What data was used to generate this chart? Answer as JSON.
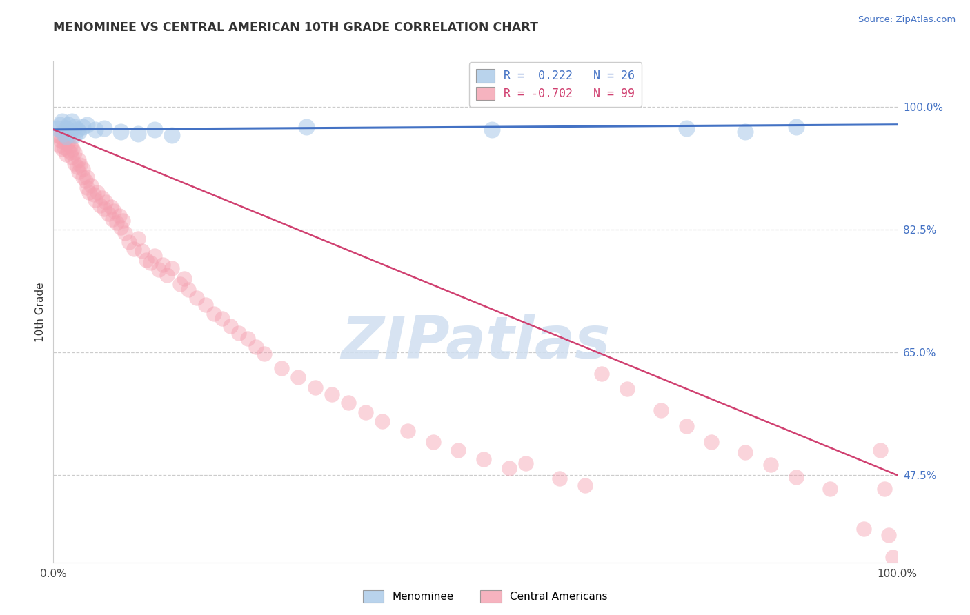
{
  "title": "MENOMINEE VS CENTRAL AMERICAN 10TH GRADE CORRELATION CHART",
  "source": "Source: ZipAtlas.com",
  "ylabel": "10th Grade",
  "yticks": [
    0.475,
    0.65,
    0.825,
    1.0
  ],
  "ytick_labels": [
    "47.5%",
    "65.0%",
    "82.5%",
    "100.0%"
  ],
  "xlim": [
    0.0,
    1.0
  ],
  "ylim": [
    0.35,
    1.065
  ],
  "legend_blue_label": "R =  0.222   N = 26",
  "legend_pink_label": "R = -0.702   N = 99",
  "blue_color": "#a8c8e8",
  "pink_color": "#f4a0b0",
  "blue_line_color": "#4472c4",
  "pink_line_color": "#d04070",
  "watermark": "ZIPatlas",
  "watermark_color": "#d0dff0",
  "legend_label_menominee": "Menominee",
  "legend_label_central": "Central Americans",
  "blue_R": 0.222,
  "blue_N": 26,
  "pink_R": -0.702,
  "pink_N": 99,
  "blue_line_start_y": 0.968,
  "blue_line_end_y": 0.975,
  "pink_line_start_y": 0.968,
  "pink_line_end_y": 0.475,
  "blue_x": [
    0.005,
    0.008,
    0.01,
    0.012,
    0.015,
    0.015,
    0.018,
    0.02,
    0.022,
    0.025,
    0.025,
    0.028,
    0.03,
    0.035,
    0.04,
    0.05,
    0.06,
    0.08,
    0.1,
    0.12,
    0.14,
    0.3,
    0.52,
    0.75,
    0.82,
    0.88
  ],
  "blue_y": [
    0.97,
    0.975,
    0.98,
    0.962,
    0.97,
    0.958,
    0.975,
    0.965,
    0.98,
    0.972,
    0.96,
    0.968,
    0.965,
    0.972,
    0.975,
    0.968,
    0.97,
    0.965,
    0.962,
    0.968,
    0.96,
    0.972,
    0.968,
    0.97,
    0.965,
    0.972
  ],
  "pink_x": [
    0.005,
    0.007,
    0.008,
    0.009,
    0.01,
    0.01,
    0.012,
    0.013,
    0.014,
    0.015,
    0.015,
    0.016,
    0.018,
    0.018,
    0.02,
    0.02,
    0.022,
    0.023,
    0.025,
    0.025,
    0.028,
    0.03,
    0.03,
    0.032,
    0.035,
    0.035,
    0.038,
    0.04,
    0.04,
    0.042,
    0.045,
    0.048,
    0.05,
    0.052,
    0.055,
    0.058,
    0.06,
    0.062,
    0.065,
    0.068,
    0.07,
    0.072,
    0.075,
    0.078,
    0.08,
    0.082,
    0.085,
    0.09,
    0.095,
    0.1,
    0.105,
    0.11,
    0.115,
    0.12,
    0.125,
    0.13,
    0.135,
    0.14,
    0.15,
    0.155,
    0.16,
    0.17,
    0.18,
    0.19,
    0.2,
    0.21,
    0.22,
    0.23,
    0.24,
    0.25,
    0.27,
    0.29,
    0.31,
    0.33,
    0.35,
    0.37,
    0.39,
    0.42,
    0.45,
    0.48,
    0.51,
    0.54,
    0.56,
    0.6,
    0.63,
    0.65,
    0.68,
    0.72,
    0.75,
    0.78,
    0.82,
    0.85,
    0.88,
    0.92,
    0.96,
    0.98,
    0.985,
    0.99,
    0.995
  ],
  "pink_y": [
    0.96,
    0.945,
    0.958,
    0.952,
    0.94,
    0.965,
    0.95,
    0.942,
    0.96,
    0.932,
    0.955,
    0.948,
    0.938,
    0.95,
    0.935,
    0.945,
    0.928,
    0.94,
    0.92,
    0.935,
    0.915,
    0.908,
    0.925,
    0.918,
    0.9,
    0.912,
    0.895,
    0.885,
    0.9,
    0.878,
    0.888,
    0.875,
    0.868,
    0.878,
    0.86,
    0.87,
    0.855,
    0.865,
    0.848,
    0.858,
    0.84,
    0.852,
    0.835,
    0.845,
    0.828,
    0.838,
    0.82,
    0.808,
    0.798,
    0.812,
    0.795,
    0.782,
    0.778,
    0.788,
    0.768,
    0.775,
    0.76,
    0.77,
    0.748,
    0.755,
    0.74,
    0.728,
    0.718,
    0.705,
    0.698,
    0.688,
    0.678,
    0.67,
    0.658,
    0.648,
    0.628,
    0.615,
    0.6,
    0.59,
    0.578,
    0.565,
    0.552,
    0.538,
    0.522,
    0.51,
    0.498,
    0.485,
    0.492,
    0.47,
    0.46,
    0.62,
    0.598,
    0.568,
    0.545,
    0.522,
    0.508,
    0.49,
    0.472,
    0.455,
    0.398,
    0.51,
    0.455,
    0.39,
    0.358
  ]
}
